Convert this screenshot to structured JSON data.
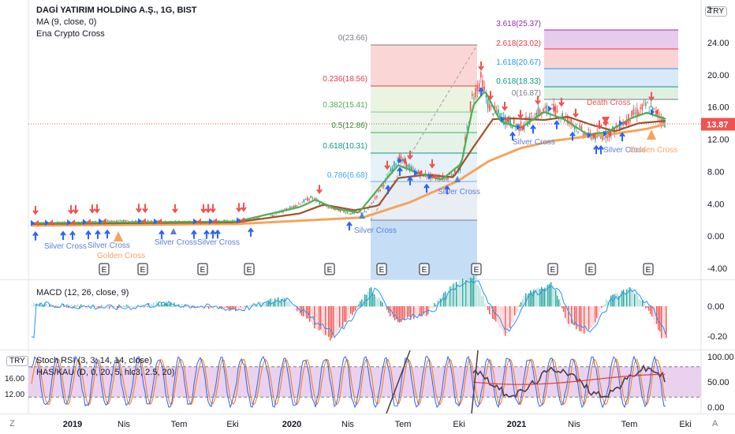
{
  "header": {
    "symbol": "DAGİ YATIRIM HOLDİNG A.Ş., 1G, BIST",
    "study_ma": "MA (9, close, 0)",
    "study_cross": "Ena Crypto Cross",
    "currency": "TRY",
    "scale_mode_top": "2",
    "scale_mode_bottom": "A",
    "zoom_z": "Z"
  },
  "macd_panel": {
    "title": "MACD (12, 26, close, 9)"
  },
  "stoch_panel": {
    "title1": "Stoch RSI (3, 3, 14, 14, close)",
    "title2": "HAS/KAU (D, 0, 20, 5, hlc3, 2.5, 20)",
    "currency": "TRY",
    "left_top": "16.00",
    "left_mid": "12.00"
  },
  "colors": {
    "up": "#26a69a",
    "down": "#ef5350",
    "ma_green": "#4caf50",
    "ma_brown": "#a0522d",
    "ma_orange": "#f7a35c",
    "gold_triangle": "#f7a35c",
    "blue_arrow": "#2962ff",
    "macd_line": "#2196f3",
    "stoch_k": "#2962ff",
    "stoch_d": "#f57c00",
    "stoch_bg": "#e1bee7"
  },
  "chart_data": [
    {
      "type": "line",
      "title": "DAGİ YATIRIM HOLDİNG A.Ş., 1G, BIST",
      "y_axis_ticks": [
        "24.00",
        "20.00",
        "16.00",
        "12.00",
        "8.00",
        "4.00",
        "0.00",
        "-4.00"
      ],
      "ylim": [
        -4.5,
        26.5
      ],
      "last_price": 13.87,
      "x_ticks": [
        "2019",
        "Nis",
        "Tem",
        "Eki",
        "2020",
        "Nis",
        "Tem",
        "Eki",
        "2021",
        "Nis",
        "Tem",
        "Eki"
      ],
      "series": [
        {
          "name": "MA (9, close, 0)",
          "x": [
            0,
            4,
            8,
            12,
            16,
            20,
            24,
            28,
            30,
            32,
            34,
            36,
            38,
            40,
            42,
            44,
            46,
            48,
            50,
            52,
            54
          ],
          "values": [
            1.4,
            1.5,
            1.6,
            1.8,
            1.7,
            1.8,
            1.9,
            2.0,
            4.0,
            3.0,
            2.9,
            2.7,
            8.5,
            7.0,
            7.8,
            19.0,
            15.0,
            14.5,
            12.8,
            14.8,
            15.1
          ]
        }
      ],
      "fibonacci": [
        {
          "level": "0(23.66)",
          "price": 23.66
        },
        {
          "level": "0.236(18.56)",
          "price": 18.56
        },
        {
          "level": "0.382(15.41)",
          "price": 15.41
        },
        {
          "level": "0.5(12.86)",
          "price": 12.86
        },
        {
          "level": "0.618(10.31)",
          "price": 10.31
        },
        {
          "level": "0.786(6.68)",
          "price": 6.68
        },
        {
          "level": "3.618(25.37)",
          "price": 25.37
        },
        {
          "level": "2.618(23.02)",
          "price": 23.02
        },
        {
          "level": "1.618(20.67)",
          "price": 20.67
        },
        {
          "level": "0.618(18.33)",
          "price": 18.33
        },
        {
          "level": "0(16.87)",
          "price": 16.87
        }
      ],
      "annotations": [
        "Silver Cross",
        "Silver Cross",
        "Golden Cross",
        "Silver Cross",
        "Silver Cross",
        "Silver Cross",
        "Silver Cross",
        "Silver Cross",
        "Silver Cross",
        "Death Cross",
        "Golden Cross"
      ],
      "earnings_marks": [
        "E",
        "E",
        "E",
        "E",
        "E",
        "E",
        "E",
        "E",
        "E",
        "E",
        "E"
      ]
    },
    {
      "type": "bar",
      "title": "MACD (12, 26, close, 9)",
      "y_axis_ticks": [
        "0.00",
        "-0.20"
      ],
      "ylim": [
        -0.26,
        0.16
      ]
    },
    {
      "type": "line",
      "title": "Stoch RSI (3, 3, 14, 14, close)",
      "y_axis_ticks": [
        "100.00",
        "50.00",
        "0.00"
      ],
      "ylim": [
        -5,
        105
      ],
      "bands": [
        80,
        20
      ]
    }
  ]
}
